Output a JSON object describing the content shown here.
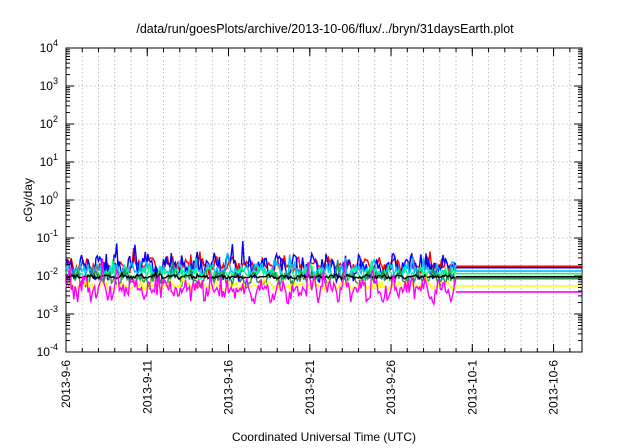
{
  "chart_data": {
    "type": "line",
    "title": "/data/run/goesPlots/archive/2013-10-06/flux/../bryn/31daysEarth.plot",
    "xlabel": "Coordinated Universal Time (UTC)",
    "ylabel": "cGy/day",
    "yscale": "log",
    "ylim": [
      0.0001,
      10000
    ],
    "xlim": [
      "2013-09-06",
      "2013-10-07 18:00"
    ],
    "x_tick_labels": [
      "2013-9-6",
      "2013-9-11",
      "2013-9-16",
      "2013-9-21",
      "2013-9-26",
      "2013-10-1",
      "2013-10-6"
    ],
    "x_tick_dates": [
      "2013-09-06",
      "2013-09-11",
      "2013-09-16",
      "2013-09-21",
      "2013-09-26",
      "2013-10-01",
      "2013-10-06"
    ],
    "y_tick_labels": [
      {
        "base": "10",
        "exp": "-4",
        "value": 0.0001
      },
      {
        "base": "10",
        "exp": "-3",
        "value": 0.001
      },
      {
        "base": "10",
        "exp": "-2",
        "value": 0.01
      },
      {
        "base": "10",
        "exp": "-1",
        "value": 0.1
      },
      {
        "base": "10",
        "exp": "0",
        "value": 1
      },
      {
        "base": "10",
        "exp": "1",
        "value": 10
      },
      {
        "base": "10",
        "exp": "2",
        "value": 100
      },
      {
        "base": "10",
        "exp": "3",
        "value": 1000
      },
      {
        "base": "10",
        "exp": "4",
        "value": 10000
      }
    ],
    "grid": true,
    "data_end": "2013-09-30",
    "series": [
      {
        "color": "#ff0000",
        "level": 0.019,
        "end_level": 0.018,
        "spread": 0.18
      },
      {
        "color": "#0000ff",
        "level": 0.017,
        "end_level": 0.0165,
        "spread": 0.3
      },
      {
        "color": "#00bfff",
        "level": 0.014,
        "end_level": 0.0135,
        "spread": 0.18
      },
      {
        "color": "#00ff7f",
        "level": 0.0115,
        "end_level": 0.0115,
        "spread": 0.15
      },
      {
        "color": "#2e8b57",
        "level": 0.0085,
        "end_level": 0.0085,
        "spread": 0.2
      },
      {
        "color": "#000000",
        "level": 0.0095,
        "end_level": 0.0095,
        "spread": 0.05
      },
      {
        "color": "#ffff00",
        "level": 0.0055,
        "end_level": 0.0055,
        "spread": 0.1
      },
      {
        "color": "#ff00ff",
        "level": 0.0045,
        "end_level": 0.0038,
        "spread": 0.32
      }
    ]
  }
}
